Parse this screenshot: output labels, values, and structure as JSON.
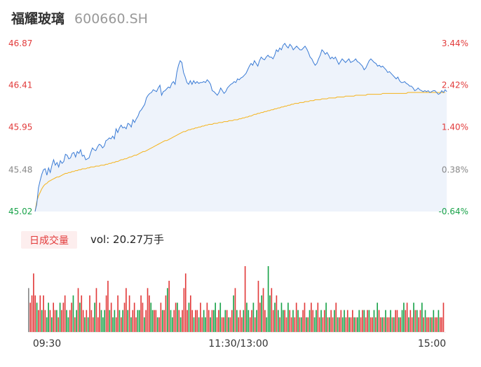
{
  "header": {
    "name": "福耀玻璃",
    "code": "600660.SH"
  },
  "colors": {
    "price_line": "#3a7bd5",
    "avg_line": "#f5b31a",
    "up": "#e23b3b",
    "down": "#1aa34a",
    "neutral": "#888888",
    "area": "#eef3fb"
  },
  "volume_panel": {
    "tab_label": "日成交量",
    "vol_text": "vol: 20.27万手"
  },
  "chart_data": [
    {
      "type": "line",
      "title": "",
      "x": {
        "time_labels": [
          "09:30",
          "11:30/13:00",
          "15:00"
        ],
        "points": 242
      },
      "y_price_ticks": [
        "46.87",
        "46.41",
        "45.95",
        "45.48",
        "45.02"
      ],
      "y_pct_ticks": [
        "3.44%",
        "2.42%",
        "1.40%",
        "0.38%",
        "-0.64%"
      ],
      "ylim": [
        45.02,
        46.87
      ],
      "prev_close": 45.31,
      "grid": false,
      "series": [
        {
          "key": "price",
          "values": [
            45.02,
            45.1,
            45.28,
            45.36,
            45.43,
            45.48,
            45.49,
            45.42,
            45.5,
            45.45,
            45.53,
            45.59,
            45.53,
            45.56,
            45.51,
            45.58,
            45.55,
            45.57,
            45.65,
            45.64,
            45.6,
            45.61,
            45.66,
            45.67,
            45.62,
            45.68,
            45.66,
            45.7,
            45.63,
            45.64,
            45.59,
            45.6,
            45.61,
            45.67,
            45.72,
            45.7,
            45.69,
            45.73,
            45.76,
            45.75,
            45.72,
            45.74,
            45.8,
            45.81,
            45.83,
            45.82,
            45.85,
            45.82,
            45.93,
            45.89,
            45.94,
            45.97,
            45.94,
            45.95,
            45.93,
            45.99,
            45.98,
            45.95,
            46.03,
            46.0,
            46.04,
            46.07,
            46.12,
            46.14,
            46.17,
            46.2,
            46.27,
            46.3,
            46.32,
            46.33,
            46.36,
            46.35,
            46.34,
            46.38,
            46.41,
            46.3,
            46.34,
            46.35,
            46.37,
            46.39,
            46.38,
            46.43,
            46.45,
            46.42,
            46.55,
            46.63,
            46.68,
            46.66,
            46.55,
            46.5,
            46.44,
            46.42,
            46.46,
            46.42,
            46.46,
            46.43,
            46.45,
            46.43,
            46.44,
            46.44,
            46.45,
            46.44,
            46.47,
            46.45,
            46.42,
            46.35,
            46.34,
            46.32,
            46.3,
            46.33,
            46.38,
            46.35,
            46.32,
            46.34,
            46.38,
            46.4,
            46.42,
            46.43,
            46.45,
            46.44,
            46.48,
            46.47,
            46.49,
            46.5,
            46.52,
            46.54,
            46.58,
            46.62,
            46.65,
            46.63,
            46.68,
            46.65,
            46.62,
            46.68,
            46.72,
            46.7,
            46.69,
            46.72,
            46.74,
            46.72,
            46.72,
            46.7,
            46.74,
            46.8,
            46.78,
            46.82,
            46.8,
            46.85,
            46.87,
            46.84,
            46.82,
            46.86,
            46.84,
            46.8,
            46.82,
            46.84,
            46.82,
            46.8,
            46.8,
            46.82,
            46.84,
            46.81,
            46.77,
            46.72,
            46.7,
            46.66,
            46.63,
            46.65,
            46.7,
            46.74,
            46.8,
            46.78,
            46.75,
            46.77,
            46.74,
            46.7,
            46.72,
            46.7,
            46.72,
            46.68,
            46.64,
            46.67,
            46.7,
            46.68,
            46.66,
            46.68,
            46.7,
            46.66,
            46.67,
            46.68,
            46.7,
            46.67,
            46.66,
            46.64,
            46.62,
            46.58,
            46.6,
            46.64,
            46.68,
            46.7,
            46.68,
            46.66,
            46.65,
            46.62,
            46.63,
            46.61,
            46.62,
            46.6,
            46.58,
            46.55,
            46.56,
            46.54,
            46.52,
            46.5,
            46.48,
            46.5,
            46.46,
            46.44,
            46.44,
            46.45,
            46.43,
            46.42,
            46.4,
            46.4,
            46.38,
            46.35,
            46.36,
            46.38,
            46.36,
            46.35,
            46.34,
            46.35,
            46.34,
            46.35,
            46.33,
            46.34,
            46.35,
            46.35,
            46.33,
            46.31,
            46.32,
            46.35,
            46.33,
            46.36,
            46.34
          ]
        },
        {
          "key": "avg",
          "values": [
            45.02,
            45.13,
            45.19,
            45.23,
            45.27,
            45.3,
            45.32,
            45.33,
            45.35,
            45.36,
            45.37,
            45.38,
            45.39,
            45.4,
            45.4,
            45.41,
            45.42,
            45.43,
            45.44,
            45.44,
            45.45,
            45.45,
            45.46,
            45.46,
            45.47,
            45.47,
            45.48,
            45.48,
            45.49,
            45.49,
            45.49,
            45.5,
            45.5,
            45.51,
            45.51,
            45.51,
            45.52,
            45.52,
            45.52,
            45.53,
            45.53,
            45.53,
            45.54,
            45.54,
            45.55,
            45.55,
            45.56,
            45.56,
            45.57,
            45.57,
            45.58,
            45.59,
            45.59,
            45.6,
            45.6,
            45.61,
            45.62,
            45.62,
            45.63,
            45.64,
            45.64,
            45.65,
            45.66,
            45.67,
            45.68,
            45.68,
            45.69,
            45.7,
            45.71,
            45.72,
            45.73,
            45.74,
            45.75,
            45.76,
            45.77,
            45.78,
            45.79,
            45.8,
            45.8,
            45.81,
            45.82,
            45.83,
            45.84,
            45.85,
            45.86,
            45.87,
            45.88,
            45.89,
            45.9,
            45.9,
            45.91,
            45.92,
            45.92,
            45.93,
            45.93,
            45.94,
            45.94,
            45.95,
            45.95,
            45.96,
            45.96,
            45.97,
            45.97,
            45.98,
            45.98,
            45.98,
            45.99,
            45.99,
            45.99,
            46.0,
            46.0,
            46.0,
            46.01,
            46.01,
            46.01,
            46.02,
            46.02,
            46.02,
            46.03,
            46.03,
            46.03,
            46.04,
            46.04,
            46.05,
            46.05,
            46.06,
            46.06,
            46.07,
            46.07,
            46.08,
            46.09,
            46.09,
            46.1,
            46.1,
            46.11,
            46.11,
            46.12,
            46.12,
            46.13,
            46.13,
            46.14,
            46.14,
            46.15,
            46.15,
            46.16,
            46.16,
            46.17,
            46.17,
            46.18,
            46.18,
            46.19,
            46.19,
            46.2,
            46.2,
            46.21,
            46.21,
            46.21,
            46.22,
            46.22,
            46.22,
            46.23,
            46.23,
            46.23,
            46.24,
            46.24,
            46.24,
            46.25,
            46.25,
            46.25,
            46.25,
            46.26,
            46.26,
            46.26,
            46.26,
            46.27,
            46.27,
            46.27,
            46.27,
            46.27,
            46.28,
            46.28,
            46.28,
            46.28,
            46.28,
            46.29,
            46.29,
            46.29,
            46.29,
            46.29,
            46.29,
            46.3,
            46.3,
            46.3,
            46.3,
            46.3,
            46.3,
            46.3,
            46.31,
            46.31,
            46.31,
            46.31,
            46.31,
            46.31,
            46.31,
            46.31,
            46.31,
            46.32,
            46.32,
            46.32,
            46.32,
            46.32,
            46.32,
            46.32,
            46.32,
            46.32,
            46.32,
            46.32,
            46.32,
            46.32,
            46.32,
            46.32,
            46.33,
            46.33,
            46.33,
            46.33,
            46.33,
            46.33,
            46.33,
            46.33,
            46.33,
            46.33,
            46.33,
            46.33,
            46.33,
            46.33,
            46.33,
            46.33,
            46.33,
            46.33,
            46.33,
            46.33,
            46.33,
            46.33,
            46.33
          ]
        }
      ]
    },
    {
      "type": "bar",
      "title": "",
      "ylabel": "",
      "volumes": [
        6,
        4,
        5,
        8,
        5,
        4,
        3,
        5,
        3,
        5,
        3,
        2,
        4,
        3,
        2,
        4,
        3,
        3,
        2,
        4,
        3,
        4,
        5,
        3,
        2,
        3,
        4,
        5,
        2,
        3,
        6,
        4,
        5,
        3,
        2,
        3,
        2,
        5,
        3,
        2,
        4,
        6,
        2,
        4,
        3,
        2,
        3,
        5,
        7,
        3,
        4,
        2,
        3,
        2,
        5,
        3,
        2,
        3,
        4,
        6,
        3,
        5,
        2,
        3,
        4,
        2,
        3,
        3,
        5,
        4,
        2,
        3,
        6,
        5,
        4,
        3,
        3,
        3,
        2,
        2,
        4,
        3,
        3,
        5,
        6,
        7,
        3,
        2,
        3,
        4,
        4,
        3,
        2,
        3,
        6,
        8,
        3,
        4,
        5,
        3,
        2,
        3,
        3,
        2,
        4,
        2,
        3,
        2,
        4,
        3,
        2,
        3,
        3,
        4,
        2,
        3,
        4,
        2,
        2,
        3,
        3,
        2,
        2,
        3,
        5,
        6,
        3,
        2,
        3,
        2,
        3,
        9,
        4,
        3,
        2,
        3,
        4,
        2,
        3,
        7,
        4,
        5,
        6,
        3,
        2,
        9,
        5,
        6,
        3,
        4,
        5,
        3,
        2,
        4,
        3,
        3,
        2,
        4,
        3,
        2,
        3,
        2,
        4,
        3,
        2,
        2,
        3,
        4,
        2,
        2,
        3,
        4,
        3,
        2,
        3,
        4,
        2,
        3,
        2,
        3,
        4,
        2,
        2,
        3,
        2,
        3,
        4,
        2,
        2,
        3,
        2,
        3,
        2,
        3,
        2,
        2,
        3,
        2,
        2,
        2,
        3,
        2,
        3,
        3,
        2,
        3,
        3,
        2,
        2,
        3,
        2,
        4,
        3,
        2,
        2,
        2,
        3,
        2,
        2,
        3,
        2,
        2,
        3,
        3,
        2,
        2,
        3,
        4,
        3,
        4,
        2,
        3,
        2,
        4,
        3,
        3,
        2,
        3,
        4,
        2,
        3,
        2,
        2,
        2,
        2,
        3,
        2,
        2,
        3,
        2,
        2,
        4
      ],
      "colors": [
        "neutral",
        "up",
        "up",
        "up",
        "up",
        "down",
        "up",
        "up",
        "down",
        "up",
        "up",
        "down",
        "down",
        "up",
        "down",
        "up",
        "up",
        "down",
        "up",
        "down",
        "up",
        "up",
        "up",
        "down",
        "down",
        "up",
        "up",
        "down",
        "up",
        "down",
        "up",
        "down",
        "up",
        "up",
        "down",
        "up",
        "down",
        "up",
        "up",
        "up",
        "down",
        "up",
        "up",
        "up",
        "down",
        "down",
        "down",
        "up",
        "up",
        "down",
        "up",
        "down",
        "down",
        "up",
        "up",
        "down",
        "up",
        "down",
        "up",
        "up",
        "down",
        "up",
        "down",
        "up",
        "up",
        "up",
        "down",
        "down",
        "up",
        "up",
        "down",
        "up",
        "up",
        "up",
        "down",
        "down",
        "up",
        "up",
        "down",
        "up",
        "up",
        "down",
        "up",
        "up",
        "down",
        "up",
        "down",
        "down",
        "up",
        "up",
        "down",
        "up",
        "down",
        "up",
        "up",
        "up",
        "up",
        "down",
        "up",
        "up",
        "down",
        "up",
        "up",
        "down",
        "up",
        "up",
        "down",
        "down",
        "up",
        "up",
        "down",
        "up",
        "down",
        "down",
        "up",
        "up",
        "down",
        "up",
        "up",
        "down",
        "up",
        "down",
        "up",
        "up",
        "down",
        "up",
        "down",
        "up",
        "up",
        "up",
        "down",
        "up",
        "down",
        "down",
        "up",
        "up",
        "down",
        "up",
        "down",
        "up",
        "up",
        "down",
        "up",
        "up",
        "down",
        "down",
        "down",
        "up",
        "up",
        "down",
        "up",
        "down",
        "up",
        "down",
        "down",
        "up",
        "up",
        "down",
        "up",
        "up",
        "down",
        "up",
        "up",
        "down",
        "up",
        "down",
        "up",
        "up",
        "down",
        "up",
        "down",
        "up",
        "up",
        "down",
        "down",
        "up",
        "up",
        "down",
        "up",
        "up",
        "down",
        "up",
        "down",
        "up",
        "up",
        "down",
        "up",
        "down",
        "up",
        "up",
        "down",
        "down",
        "up",
        "up",
        "down",
        "up",
        "up",
        "down",
        "up",
        "down",
        "down",
        "up",
        "up",
        "down",
        "up",
        "up",
        "down",
        "up",
        "up",
        "down",
        "up",
        "down",
        "up",
        "up",
        "down",
        "up",
        "down",
        "up",
        "up",
        "down",
        "up",
        "down",
        "up",
        "up",
        "down",
        "up",
        "down",
        "down",
        "up",
        "up",
        "down",
        "up",
        "up",
        "down",
        "up",
        "down",
        "up",
        "up",
        "down",
        "up",
        "down",
        "up",
        "up",
        "down",
        "up",
        "down",
        "up",
        "up",
        "down",
        "up",
        "up"
      ]
    }
  ]
}
